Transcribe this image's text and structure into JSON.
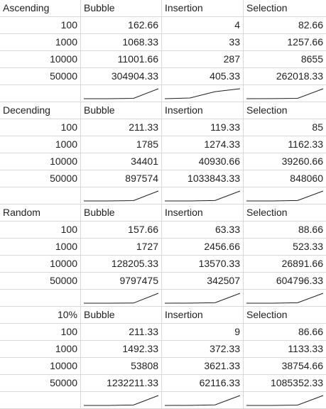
{
  "blocks": [
    {
      "row_label": "Ascending",
      "headers": [
        "Bubble",
        "Insertion",
        "Selection"
      ],
      "rows": [
        {
          "n": "100",
          "bubble": "162.66",
          "insertion": "4",
          "selection": "82.66"
        },
        {
          "n": "1000",
          "bubble": "1068.33",
          "insertion": "33",
          "selection": "1257.66"
        },
        {
          "n": "10000",
          "bubble": "11001.66",
          "insertion": "287",
          "selection": "8655"
        },
        {
          "n": "50000",
          "bubble": "304904.33",
          "insertion": "405.33",
          "selection": "262018.33"
        }
      ],
      "series": {
        "bubble": [
          162.66,
          1068.33,
          11001.66,
          304904.33
        ],
        "insertion": [
          4,
          33,
          287,
          405.33
        ],
        "selection": [
          82.66,
          1257.66,
          8655,
          262018.33
        ]
      }
    },
    {
      "row_label": "Decending",
      "headers": [
        "Bubble",
        "Insertion",
        "Selection"
      ],
      "rows": [
        {
          "n": "100",
          "bubble": "211.33",
          "insertion": "119.33",
          "selection": "85"
        },
        {
          "n": "1000",
          "bubble": "1785",
          "insertion": "1274.33",
          "selection": "1162.33"
        },
        {
          "n": "10000",
          "bubble": "34401",
          "insertion": "40930.66",
          "selection": "39260.66"
        },
        {
          "n": "50000",
          "bubble": "897574",
          "insertion": "1033843.33",
          "selection": "848060"
        }
      ],
      "series": {
        "bubble": [
          211.33,
          1785,
          34401,
          897574
        ],
        "insertion": [
          119.33,
          1274.33,
          40930.66,
          1033843.33
        ],
        "selection": [
          85,
          1162.33,
          39260.66,
          848060
        ]
      }
    },
    {
      "row_label": "Random",
      "headers": [
        "Bubble",
        "Insertion",
        "Selection"
      ],
      "rows": [
        {
          "n": "100",
          "bubble": "157.66",
          "insertion": "63.33",
          "selection": "88.66"
        },
        {
          "n": "1000",
          "bubble": "1727",
          "insertion": "2456.66",
          "selection": "523.33"
        },
        {
          "n": "10000",
          "bubble": "128205.33",
          "insertion": "13570.33",
          "selection": "26891.66"
        },
        {
          "n": "50000",
          "bubble": "9797475",
          "insertion": "342507",
          "selection": "604796.33"
        }
      ],
      "series": {
        "bubble": [
          157.66,
          1727,
          128205.33,
          9797475
        ],
        "insertion": [
          63.33,
          2456.66,
          13570.33,
          342507
        ],
        "selection": [
          88.66,
          523.33,
          26891.66,
          604796.33
        ]
      }
    },
    {
      "row_label": "10%",
      "headers": [
        "Bubble",
        "Insertion",
        "Selection"
      ],
      "rows": [
        {
          "n": "100",
          "bubble": "211.33",
          "insertion": "9",
          "selection": "86.66"
        },
        {
          "n": "1000",
          "bubble": "1492.33",
          "insertion": "372.33",
          "selection": "1133.33"
        },
        {
          "n": "10000",
          "bubble": "53808",
          "insertion": "3621.33",
          "selection": "38754.66"
        },
        {
          "n": "50000",
          "bubble": "1232211.33",
          "insertion": "62116.33",
          "selection": "1085352.33"
        }
      ],
      "series": {
        "bubble": [
          211.33,
          1492.33,
          53808,
          1232211.33
        ],
        "insertion": [
          9,
          372.33,
          3621.33,
          62116.33
        ],
        "selection": [
          86.66,
          1133.33,
          38754.66,
          1085352.33
        ]
      }
    }
  ]
}
